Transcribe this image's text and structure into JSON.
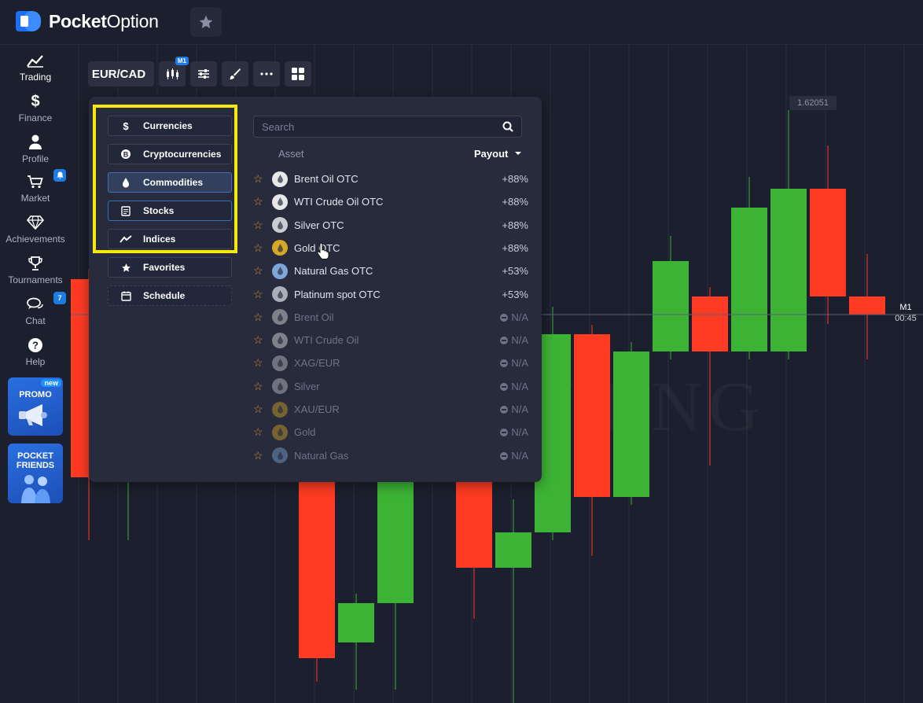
{
  "brand": {
    "name_bold": "Pocket",
    "name_light": "Option"
  },
  "sidebar": {
    "items": [
      {
        "label": "Trading",
        "icon": "chart-line-icon"
      },
      {
        "label": "Finance",
        "icon": "dollar-icon"
      },
      {
        "label": "Profile",
        "icon": "user-icon"
      },
      {
        "label": "Market",
        "icon": "cart-icon",
        "badge": ""
      },
      {
        "label": "Achievements",
        "icon": "diamond-icon"
      },
      {
        "label": "Tournaments",
        "icon": "trophy-icon"
      },
      {
        "label": "Chat",
        "icon": "chat-icon",
        "badge": "7"
      },
      {
        "label": "Help",
        "icon": "help-icon"
      }
    ],
    "promo": {
      "label": "PROMO",
      "new": "new"
    },
    "friends": {
      "label": "POCKET FRIENDS"
    }
  },
  "toolbar": {
    "pair": "EUR/CAD",
    "timeframe": "M1"
  },
  "chart": {
    "price_label": "1.62051",
    "timeframe_label": "M1",
    "timer": "00:45",
    "colors": {
      "up": "#3cb335",
      "down": "#ff3b23"
    },
    "watermark": "THE SAVVY ENG"
  },
  "panel": {
    "categories": [
      {
        "label": "Currencies",
        "icon": "dollar-icon"
      },
      {
        "label": "Cryptocurrencies",
        "icon": "bitcoin-icon"
      },
      {
        "label": "Commodities",
        "icon": "drop-icon",
        "selected": true
      },
      {
        "label": "Stocks",
        "icon": "document-icon"
      },
      {
        "label": "Indices",
        "icon": "trend-icon"
      },
      {
        "label": "Favorites",
        "icon": "star-icon"
      },
      {
        "label": "Schedule",
        "icon": "calendar-icon"
      }
    ],
    "search_placeholder": "Search",
    "col_asset": "Asset",
    "col_payout": "Payout",
    "assets": [
      {
        "name": "Brent Oil OTC",
        "payout": "+88%",
        "color": "#e8e8ea"
      },
      {
        "name": "WTI Crude Oil OTC",
        "payout": "+88%",
        "color": "#e8e8ea"
      },
      {
        "name": "Silver OTC",
        "payout": "+88%",
        "color": "#c9ccd2"
      },
      {
        "name": "Gold OTC",
        "payout": "+88%",
        "color": "#d7a827"
      },
      {
        "name": "Natural Gas OTC",
        "payout": "+53%",
        "color": "#7fa6d8"
      },
      {
        "name": "Platinum spot OTC",
        "payout": "+53%",
        "color": "#a9aeb8"
      },
      {
        "name": "Brent Oil",
        "payout": "N/A",
        "color": "#e8e8ea"
      },
      {
        "name": "WTI Crude Oil",
        "payout": "N/A",
        "color": "#e8e8ea"
      },
      {
        "name": "XAG/EUR",
        "payout": "N/A",
        "color": "#c9ccd2"
      },
      {
        "name": "Silver",
        "payout": "N/A",
        "color": "#c9ccd2"
      },
      {
        "name": "XAU/EUR",
        "payout": "N/A",
        "color": "#d7a827"
      },
      {
        "name": "Gold",
        "payout": "N/A",
        "color": "#d7a827"
      },
      {
        "name": "Natural Gas",
        "payout": "N/A",
        "color": "#7fa6d8"
      }
    ]
  }
}
